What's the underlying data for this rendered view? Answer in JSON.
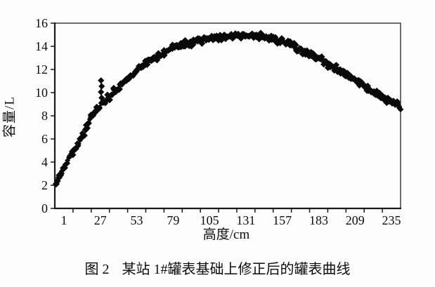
{
  "figure": {
    "caption_prefix": "图 2",
    "caption_text": "某站 1#罐表基础上修正后的罐表曲线"
  },
  "chart_data": {
    "type": "scatter",
    "title": "",
    "xlabel": "高度/cm",
    "ylabel": "容量/L",
    "xlim": [
      0,
      247
    ],
    "ylim": [
      0,
      16
    ],
    "grid": "off",
    "legend": "none",
    "x_tick_labels": [
      "1",
      "27",
      "53",
      "79",
      "105",
      "131",
      "157",
      "183",
      "209",
      "235"
    ],
    "x_tick_label_positions": [
      6.5,
      32.5,
      58.5,
      84.5,
      110.5,
      136.5,
      162.5,
      188.5,
      214.5,
      240.5
    ],
    "x_minor_tick_step": 13,
    "y_ticks": [
      0,
      2,
      4,
      6,
      8,
      10,
      12,
      14,
      16
    ],
    "y_tick_labels": [
      "0",
      "2",
      "4",
      "6",
      "8",
      "10",
      "12",
      "14",
      "16"
    ],
    "marker": "diamond",
    "marker_color": "#0a0a0a",
    "marker_half_diagonal_px": 4.6,
    "scatter_jitter_L": 0.3,
    "points_x_step_cm": 1,
    "curve_points": [
      [
        1,
        2.1
      ],
      [
        3,
        2.7
      ],
      [
        5,
        3.2
      ],
      [
        8,
        3.9
      ],
      [
        11,
        4.5
      ],
      [
        14,
        5.1
      ],
      [
        17,
        5.7
      ],
      [
        20,
        6.3
      ],
      [
        23,
        7.0
      ],
      [
        26,
        7.9
      ],
      [
        29,
        8.4
      ],
      [
        33,
        8.9
      ],
      [
        37,
        9.4
      ],
      [
        41,
        9.9
      ],
      [
        45,
        10.4
      ],
      [
        49,
        10.9
      ],
      [
        53,
        11.3
      ],
      [
        57,
        11.7
      ],
      [
        62,
        12.2
      ],
      [
        67,
        12.6
      ],
      [
        72,
        13.0
      ],
      [
        77,
        13.4
      ],
      [
        82,
        13.8
      ],
      [
        88,
        14.05
      ],
      [
        94,
        14.25
      ],
      [
        100,
        14.4
      ],
      [
        107,
        14.55
      ],
      [
        114,
        14.7
      ],
      [
        121,
        14.8
      ],
      [
        128,
        14.9
      ],
      [
        135,
        14.95
      ],
      [
        142,
        14.95
      ],
      [
        149,
        14.85
      ],
      [
        156,
        14.65
      ],
      [
        163,
        14.35
      ],
      [
        170,
        14.0
      ],
      [
        177,
        13.6
      ],
      [
        184,
        13.2
      ],
      [
        191,
        12.75
      ],
      [
        198,
        12.3
      ],
      [
        205,
        11.8
      ],
      [
        212,
        11.3
      ],
      [
        219,
        10.75
      ],
      [
        226,
        10.2
      ],
      [
        233,
        9.7
      ],
      [
        240,
        9.2
      ],
      [
        247,
        8.8
      ]
    ],
    "outlier_points": [
      [
        33,
        11.05
      ],
      [
        33.5,
        10.55
      ],
      [
        33,
        10.05
      ],
      [
        33.5,
        9.55
      ]
    ],
    "spike_line": {
      "x": 33,
      "y_from": 8.8,
      "y_to": 10.9
    }
  },
  "style": {
    "axis_color": "#1a1a1a",
    "box_color": "#4a4a4a",
    "ink_color": "#0d0d0d",
    "background": "#fdfdfd"
  }
}
